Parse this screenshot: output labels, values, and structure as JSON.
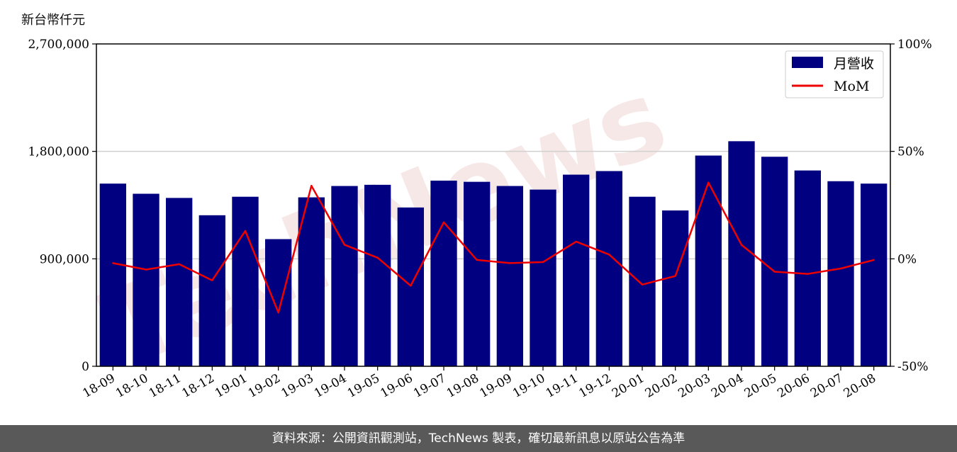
{
  "unit_label": "新台幣仟元",
  "footer_text": "資料來源：公開資訊觀測站，TechNews 製表，確切最新訊息以原站公告為準",
  "watermark_text": "TechNews",
  "colors": {
    "bar": "#000080",
    "line": "#ee0000",
    "grid": "#d0d0d0",
    "footer_bg": "#595959"
  },
  "chart_data": {
    "type": "bar",
    "categories": [
      "18-09",
      "18-10",
      "18-11",
      "18-12",
      "19-01",
      "19-02",
      "19-03",
      "19-04",
      "19-05",
      "19-06",
      "19-07",
      "19-08",
      "19-09",
      "19-10",
      "19-11",
      "19-12",
      "20-01",
      "20-02",
      "20-03",
      "20-04",
      "20-05",
      "20-06",
      "20-07",
      "20-08"
    ],
    "series": [
      {
        "name": "月營收",
        "type": "bar",
        "axis": "left",
        "values": [
          1530000,
          1445000,
          1410000,
          1265000,
          1420000,
          1065000,
          1415000,
          1510000,
          1520000,
          1330000,
          1555000,
          1545000,
          1510000,
          1480000,
          1605000,
          1635000,
          1420000,
          1305000,
          1765000,
          1885000,
          1755000,
          1640000,
          1550000,
          1530000
        ]
      },
      {
        "name": "MoM",
        "type": "line",
        "axis": "right",
        "values": [
          -2,
          -5,
          -2.5,
          -10,
          13,
          -25,
          34,
          6.5,
          0.5,
          -12.5,
          17,
          -0.5,
          -2,
          -1.5,
          8,
          2,
          -12,
          -8,
          35.5,
          6.5,
          -6,
          -7,
          -4.5,
          -0.5
        ]
      }
    ],
    "y_left": {
      "min": 0,
      "max": 2700000,
      "ticks": [
        "0",
        "900,000",
        "1,800,000",
        "2,700,000"
      ],
      "tick_values": [
        0,
        900000,
        1800000,
        2700000
      ]
    },
    "y_right": {
      "min": -50,
      "max": 100,
      "ticks": [
        "-50%",
        "0%",
        "50%",
        "100%"
      ],
      "tick_values": [
        -50,
        0,
        50,
        100
      ]
    },
    "grid": "horizontal",
    "legend_position": "top-right"
  }
}
